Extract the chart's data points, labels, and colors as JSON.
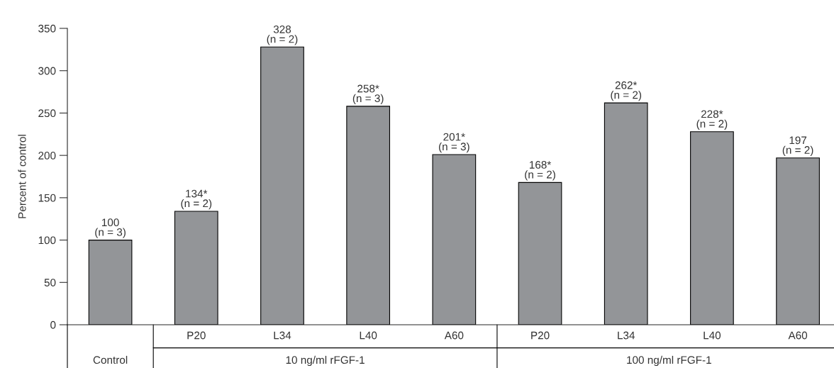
{
  "chart_data": {
    "type": "bar",
    "ylabel": "Percent of control",
    "categories": [
      null,
      "P20",
      "L34",
      "L40",
      "A60",
      "P20",
      "L34",
      "L40",
      "A60"
    ],
    "values": [
      100,
      134,
      328,
      258,
      201,
      168,
      262,
      228,
      197
    ],
    "value_labels": [
      "100\n(n = 3)",
      "134*\n(n = 2)",
      "328\n(n = 2)",
      "258*\n(n = 3)",
      "201*\n(n = 3)",
      "168*\n(n = 2)",
      "262*\n(n = 2)",
      "228*\n(n = 2)",
      "197\n(n = 2)"
    ],
    "color": "#939598",
    "ylim": [
      0,
      350
    ],
    "yticks": [
      0,
      50,
      100,
      150,
      200,
      250,
      300,
      350
    ],
    "annotations": [
      "Control",
      "10 ng/ml rFGF-1",
      "100 ng/ml rFGF-1"
    ],
    "grid": false
  }
}
